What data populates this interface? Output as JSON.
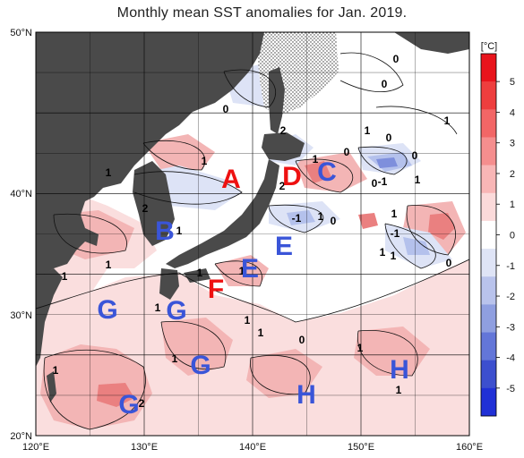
{
  "title": "Monthly mean SST anomalies for Jan. 2019.",
  "colors": {
    "land": "#4a4a4a",
    "ocean_neutral": "#ffffff",
    "warm_1": "#fadede",
    "warm_2": "#f3b5b5",
    "warm_3": "#ea8080",
    "cool_1": "#dde3f6",
    "cool_2": "#b4c1ec",
    "cool_3": "#7e8fdc",
    "region_red": "#ee1111",
    "region_blue": "#3a55d8"
  },
  "lat_labels": [
    "50°N",
    "40°N",
    "30°N",
    "20°N"
  ],
  "lon_labels": [
    "120°E",
    "130°E",
    "140°E",
    "150°E",
    "160°E"
  ],
  "colorbar": {
    "unit": "[°C]",
    "ticks": [
      "5",
      "4",
      "3",
      "2",
      "1",
      "0",
      "-1",
      "-2",
      "-3",
      "-4",
      "-5"
    ],
    "colors": [
      "#e8141c",
      "#ee3e3e",
      "#f26666",
      "#f58e8e",
      "#f8b6b6",
      "#fbdada",
      "#ffffff",
      "#dfe4f6",
      "#b9c3ec",
      "#8f9fe0",
      "#6376d8",
      "#3c4fce",
      "#2030d6"
    ]
  },
  "region_labels": [
    {
      "text": "A",
      "color": "red"
    },
    {
      "text": "D",
      "color": "red"
    },
    {
      "text": "C",
      "color": "blue"
    },
    {
      "text": "B",
      "color": "blue"
    },
    {
      "text": "E",
      "color": "blue"
    },
    {
      "text": "E",
      "color": "blue"
    },
    {
      "text": "F",
      "color": "red"
    },
    {
      "text": "G",
      "color": "blue"
    },
    {
      "text": "G",
      "color": "blue"
    },
    {
      "text": "G",
      "color": "blue"
    },
    {
      "text": "G",
      "color": "blue"
    },
    {
      "text": "H",
      "color": "blue"
    },
    {
      "text": "H",
      "color": "blue"
    }
  ],
  "contour_labels": [
    "0",
    "0",
    "0",
    "0",
    "1",
    "0",
    "1",
    "1",
    "0",
    "2",
    "2",
    "1",
    "0",
    "-1",
    "1",
    "0",
    "-1",
    "-1",
    "1",
    "1",
    "1",
    "1",
    "0",
    "1",
    "1",
    "2",
    "1",
    "1",
    "1",
    "1",
    "0",
    "1",
    "1",
    "1",
    "1",
    "2",
    "1",
    "1",
    "1"
  ]
}
